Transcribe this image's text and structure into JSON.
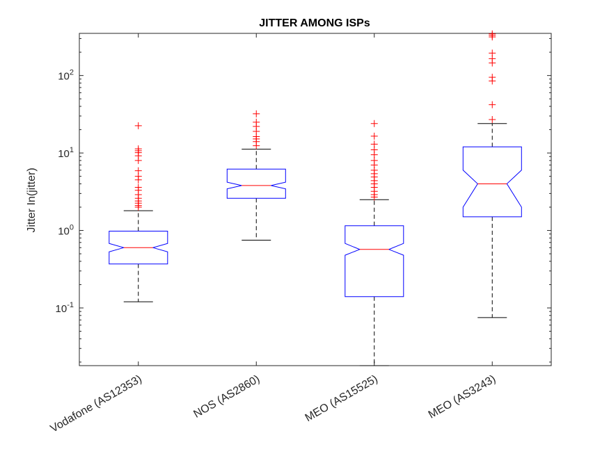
{
  "chart_data": {
    "type": "boxplot",
    "title": "JITTER AMONG ISPs",
    "ylabel": "Jitter In(jitter)",
    "xlabel": "",
    "yscale": "log",
    "ylim": [
      0.018,
      350
    ],
    "notched": true,
    "grid": false,
    "legend": "none",
    "colors": {
      "box": "#0000ff",
      "median": "#ff0000",
      "whisker": "#000000",
      "outlier": "#ff0000"
    },
    "y_ticks": [
      {
        "value": 0.1,
        "base": "10",
        "exp": "-1"
      },
      {
        "value": 1,
        "base": "10",
        "exp": "0"
      },
      {
        "value": 10,
        "base": "10",
        "exp": "1"
      },
      {
        "value": 100,
        "base": "10",
        "exp": "2"
      }
    ],
    "categories": [
      "Vodafone (AS12353)",
      "NOS (AS2860)",
      "MEO (AS15525)",
      "MEO (AS3243)"
    ],
    "boxes": [
      {
        "category": "Vodafone (AS12353)",
        "whisker_low": 0.12,
        "q1": 0.37,
        "median": 0.6,
        "q3": 0.98,
        "whisker_high": 1.8,
        "notch_low": 0.53,
        "notch_high": 0.68,
        "outliers": [
          2.0,
          2.1,
          2.25,
          2.4,
          2.6,
          2.9,
          3.3,
          3.6,
          4.5,
          5.0,
          5.9,
          8.0,
          9.2,
          10.1,
          10.7,
          11.3,
          22.5
        ]
      },
      {
        "category": "NOS (AS2860)",
        "whisker_low": 0.75,
        "q1": 2.6,
        "median": 3.8,
        "q3": 6.2,
        "whisker_high": 11.2,
        "notch_low": 3.45,
        "notch_high": 4.2,
        "outliers": [
          12.4,
          14.0,
          15.2,
          16.3,
          19.0,
          22.0,
          25.0,
          32.0
        ]
      },
      {
        "category": "MEO (AS15525)",
        "whisker_low": 0.018,
        "q1": 0.14,
        "median": 0.57,
        "q3": 1.15,
        "whisker_high": 2.5,
        "notch_low": 0.48,
        "notch_high": 0.68,
        "outliers": [
          2.7,
          2.9,
          3.2,
          3.6,
          4.0,
          4.4,
          4.9,
          5.4,
          6.0,
          7.0,
          8.0,
          9.5,
          11.0,
          13.0,
          16.5,
          24.0
        ]
      },
      {
        "category": "MEO (AS3243)",
        "whisker_low": 0.075,
        "q1": 1.5,
        "median": 4.0,
        "q3": 12.0,
        "whisker_high": 24.0,
        "notch_low": 2.0,
        "notch_high": 6.0,
        "outliers": [
          27.0,
          42.0,
          85.0,
          95.0,
          145.0,
          165.0,
          195.0,
          315.0,
          330.0,
          345.0
        ]
      }
    ]
  }
}
